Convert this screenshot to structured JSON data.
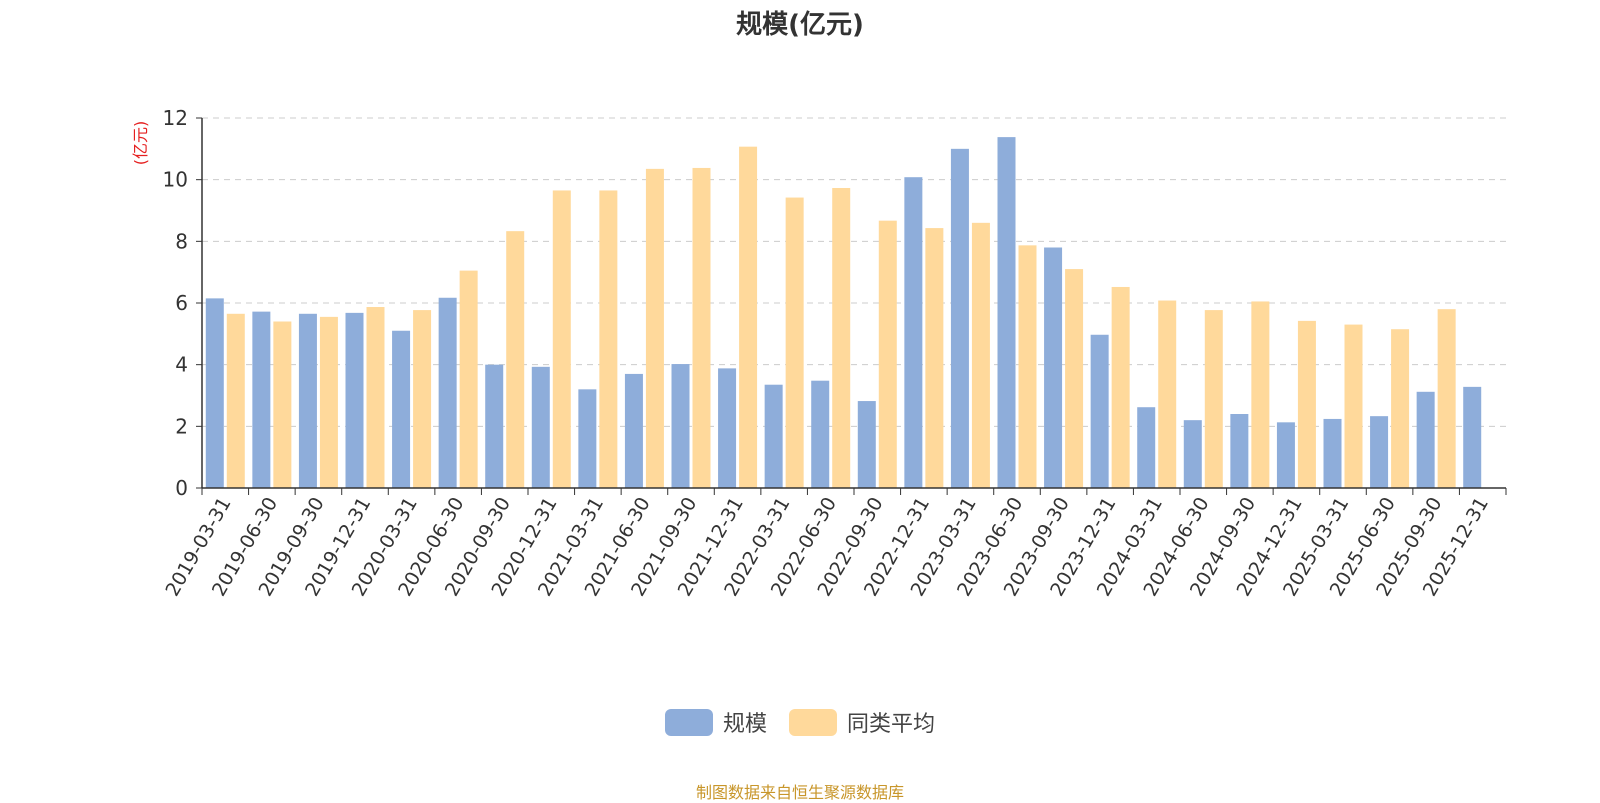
{
  "chart_data": {
    "type": "bar",
    "title": "规模(亿元)",
    "ylabel": "(亿元)",
    "ylim": [
      0,
      12
    ],
    "yticks": [
      "0",
      "2",
      "4",
      "6",
      "8",
      "10",
      "12"
    ],
    "grid": true,
    "legend_position": "bottom",
    "categories": [
      "2019-03-31",
      "2019-06-30",
      "2019-09-30",
      "2019-12-31",
      "2020-03-31",
      "2020-06-30",
      "2020-09-30",
      "2020-12-31",
      "2021-03-31",
      "2021-06-30",
      "2021-09-30",
      "2021-12-31",
      "2022-03-31",
      "2022-06-30",
      "2022-09-30",
      "2022-12-31",
      "2023-03-31",
      "2023-06-30",
      "2023-09-30",
      "2023-12-31",
      "2024-03-31",
      "2024-06-30",
      "2024-09-30",
      "2024-12-31",
      "2025-03-31",
      "2025-06-30",
      "2025-09-30",
      "2025-12-31"
    ],
    "series": [
      {
        "name": "规模",
        "color": "#8eadda",
        "values": [
          6.15,
          5.72,
          5.65,
          5.68,
          5.1,
          6.17,
          4.0,
          3.93,
          3.2,
          3.7,
          4.02,
          3.88,
          3.35,
          3.48,
          2.82,
          10.08,
          11.0,
          11.38,
          7.8,
          4.97,
          2.62,
          2.2,
          2.4,
          2.13,
          2.24,
          2.33,
          3.12,
          3.28
        ]
      },
      {
        "name": "同类平均",
        "color": "#ffd99b",
        "values": [
          5.65,
          5.4,
          5.55,
          5.87,
          5.77,
          7.05,
          8.33,
          9.65,
          9.65,
          10.35,
          10.38,
          11.07,
          9.42,
          9.73,
          8.67,
          8.43,
          8.6,
          7.87,
          7.1,
          6.52,
          6.08,
          5.77,
          6.05,
          5.42,
          5.3,
          5.15,
          5.8,
          null
        ]
      }
    ]
  },
  "source_note": "制图数据来自恒生聚源数据库",
  "colors": {
    "axis": "#333333",
    "grid": "#cccccc",
    "ylabel": "#e52020",
    "title": "#333333",
    "source": "#c8962a"
  }
}
